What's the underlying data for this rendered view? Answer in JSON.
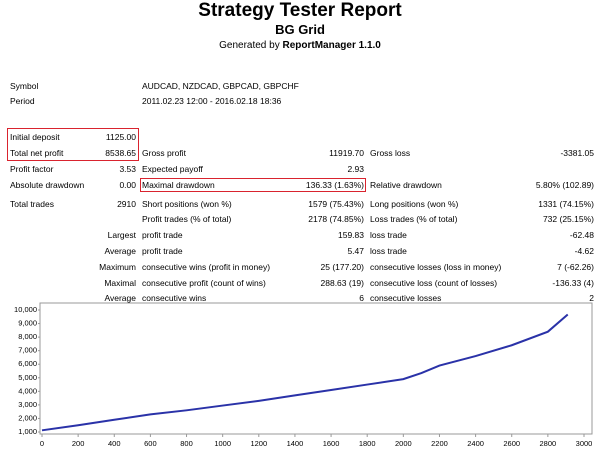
{
  "header": {
    "title": "Strategy Tester Report",
    "subtitle": "BG Grid",
    "generated_by": "Generated by",
    "generator": "ReportManager 1.1.0"
  },
  "info": [
    [
      "Symbol",
      "AUDCAD, NZDCAD, GBPCAD, GBPCHF"
    ],
    [
      "Period",
      "2011.02.23 12:00 - 2016.02.18 18:36"
    ]
  ],
  "summary": {
    "rows": [
      [
        "Initial deposit",
        "1125.00",
        null,
        null,
        null,
        null
      ],
      [
        "Total net profit",
        "8538.65",
        "Gross profit",
        "11919.70",
        "Gross loss",
        "-3381.05"
      ],
      [
        "Profit factor",
        "3.53",
        "Expected payoff",
        "2.93",
        null,
        null
      ],
      [
        "Absolute drawdown",
        "0.00",
        "Maximal drawdown",
        "136.33 (1.63%)",
        "Relative drawdown",
        "5.80% (102.89)"
      ],
      [
        "Total trades",
        "2910",
        "Short positions (won %)",
        "1579 (75.43%)",
        "Long positions (won %)",
        "1331 (74.15%)"
      ],
      [
        null,
        null,
        "Profit trades (% of total)",
        "2178 (74.85%)",
        "Loss trades (% of total)",
        "732 (25.15%)"
      ],
      [
        null,
        "Largest",
        "profit trade",
        "159.83",
        "loss trade",
        "-62.48"
      ],
      [
        null,
        "Average",
        "profit trade",
        "5.47",
        "loss trade",
        "-4.62"
      ],
      [
        null,
        "Maximum",
        "consecutive wins (profit in money)",
        "25 (177.20)",
        "consecutive losses (loss in money)",
        "7 (-62.26)"
      ],
      [
        null,
        "Maximal",
        "consecutive profit (count of wins)",
        "288.63 (19)",
        "consecutive loss (count of losses)",
        "-136.33 (4)"
      ],
      [
        null,
        "Average",
        "consecutive wins",
        "6",
        "consecutive losses",
        "2"
      ]
    ]
  },
  "chart_data": {
    "type": "line",
    "x": [
      0,
      200,
      400,
      600,
      800,
      1000,
      1200,
      1400,
      1600,
      1800,
      2000,
      2100,
      2200,
      2400,
      2600,
      2800,
      2910
    ],
    "series": [
      {
        "color": "#2a32a8",
        "values": [
          1125,
          1500,
          1900,
          2300,
          2600,
          2950,
          3300,
          3700,
          4100,
          4500,
          4900,
          5350,
          5900,
          6600,
          7400,
          8400,
          9664
        ]
      }
    ],
    "xlim": [
      0,
      3000
    ],
    "xticks": [
      0,
      200,
      400,
      600,
      800,
      1000,
      1200,
      1400,
      1600,
      1800,
      2000,
      2200,
      2400,
      2600,
      2800,
      3000
    ],
    "ylim": [
      1000,
      10000
    ],
    "yticks": [
      {
        "value": 1000,
        "label": "1,000"
      },
      {
        "value": 2000,
        "label": "2,000"
      },
      {
        "value": 3000,
        "label": "3,000"
      },
      {
        "value": 4000,
        "label": "4,000"
      },
      {
        "value": 5000,
        "label": "5,000"
      },
      {
        "value": 6000,
        "label": "6,000"
      },
      {
        "value": 7000,
        "label": "7,000"
      },
      {
        "value": 8000,
        "label": "8,000"
      },
      {
        "value": 9000,
        "label": "9,000"
      },
      {
        "value": 10000,
        "label": "10,000"
      }
    ]
  }
}
